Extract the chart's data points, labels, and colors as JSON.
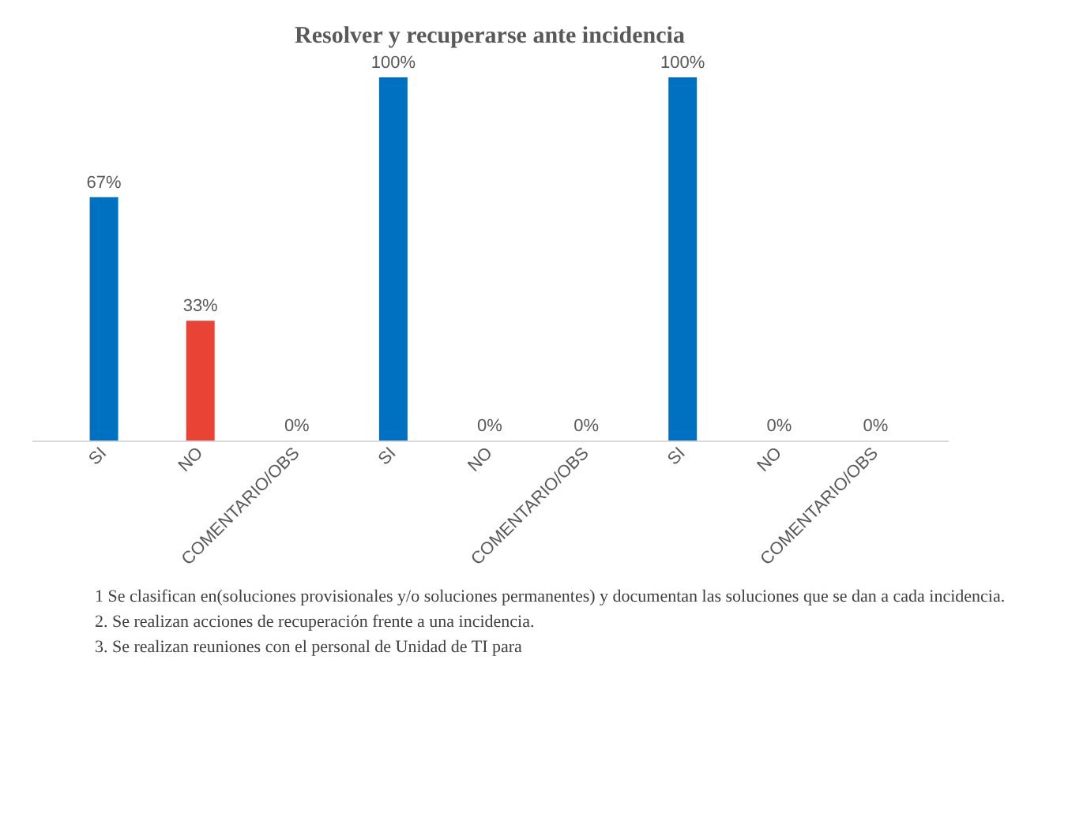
{
  "chart_data": {
    "type": "bar",
    "title": "Resolver y recuperarse ante incidencia",
    "categories": [
      "SI",
      "NO",
      "COMENTARIO/OBS",
      "SI",
      "NO",
      "COMENTARIO/OBS",
      "SI",
      "NO",
      "COMENTARIO/OBS"
    ],
    "values": [
      67,
      33,
      0,
      100,
      0,
      0,
      100,
      0,
      0
    ],
    "colors": [
      "#0070c0",
      "#e84335",
      "#0070c0",
      "#0070c0",
      "#0070c0",
      "#0070c0",
      "#0070c0",
      "#0070c0",
      "#0070c0"
    ],
    "value_labels": [
      "67%",
      "33%",
      "0%",
      "100%",
      "0%",
      "0%",
      "100%",
      "0%",
      "0%"
    ],
    "grid": false,
    "tick_labels": "x",
    "annotations": [
      "1 Se clasifican en(soluciones provisionales y/o soluciones permanentes) y documentan las soluciones que se dan a cada incidencia.",
      "2. Se realizan acciones de recuperación frente a una incidencia.",
      "3. Se realizan reuniones con el personal de Unidad de TI para"
    ]
  }
}
